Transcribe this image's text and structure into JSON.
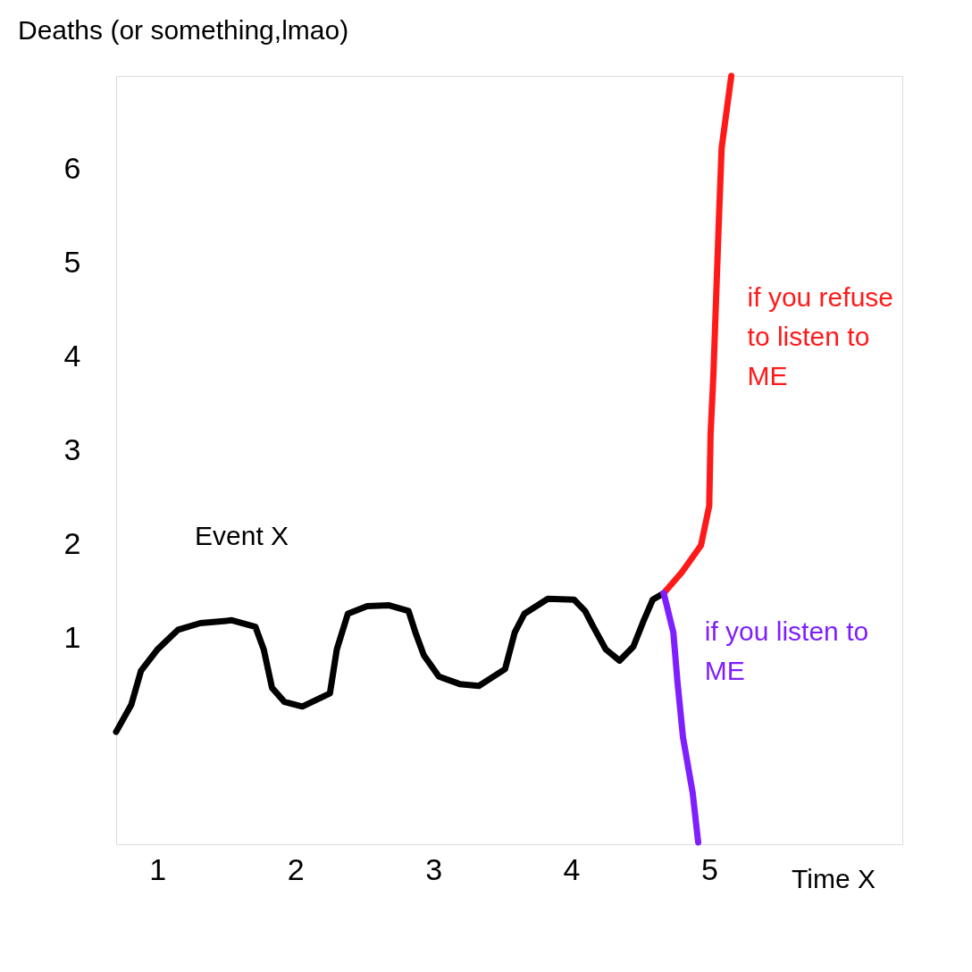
{
  "chart_data": {
    "type": "line",
    "ylabel": "Deaths (or something,lmao)",
    "xlabel": "Time X",
    "xlim": [
      0.7,
      6.4
    ],
    "ylim": [
      -1.2,
      7.0
    ],
    "xticks": [
      1,
      2,
      3,
      4,
      5
    ],
    "yticks": [
      1,
      2,
      3,
      4,
      5,
      6
    ],
    "grid": false,
    "marker": "none",
    "line_style": "solid",
    "annotations": [
      "Event X"
    ],
    "series": [
      {
        "color": "#000000",
        "x": [
          0.7,
          0.81,
          0.88,
          1,
          1.15,
          1.31,
          1.54,
          1.71,
          1.77,
          1.83,
          1.92,
          2.05,
          2.25,
          2.3,
          2.38,
          2.52,
          2.68,
          2.82,
          2.87,
          2.93,
          3.04,
          3.19,
          3.33,
          3.52,
          3.59,
          3.66,
          3.83,
          4.02,
          4.1,
          4.16,
          4.25,
          4.35,
          4.45,
          4.52,
          4.59,
          4.67
        ],
        "values": [
          0,
          0.29,
          0.65,
          0.88,
          1.09,
          1.16,
          1.19,
          1.12,
          0.88,
          0.47,
          0.32,
          0.27,
          0.41,
          0.88,
          1.26,
          1.34,
          1.35,
          1.29,
          1.06,
          0.82,
          0.59,
          0.51,
          0.49,
          0.67,
          1.06,
          1.26,
          1.42,
          1.41,
          1.29,
          1.12,
          0.88,
          0.76,
          0.91,
          1.17,
          1.41,
          1.48
        ]
      },
      {
        "name": "if you refuse to listen to ME",
        "color": "#ff1a1a",
        "x": [
          4.67,
          4.8,
          4.94,
          5,
          5.01,
          5.03,
          5.05,
          5.07,
          5.09,
          5.16
        ],
        "values": [
          1.48,
          1.7,
          1.99,
          2.41,
          3.18,
          3.8,
          4.63,
          5.46,
          6.23,
          7.0
        ]
      },
      {
        "name": "if you listen to ME",
        "color": "#7f1fff",
        "x": [
          4.67,
          4.74,
          4.77,
          4.81,
          4.88,
          4.92
        ],
        "values": [
          1.48,
          1.06,
          0.53,
          -0.06,
          -0.65,
          -1.18
        ]
      }
    ]
  }
}
